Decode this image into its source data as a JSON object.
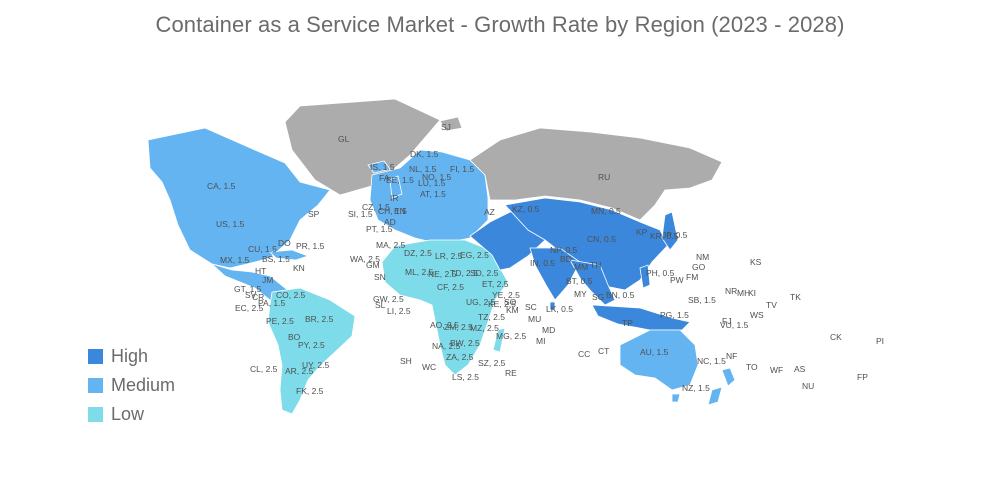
{
  "title": "Container as a Service Market - Growth Rate by Region (2023 - 2028)",
  "colors": {
    "high": "#3a87dc",
    "medium": "#64b4f2",
    "low": "#7edcea",
    "no_data": "#acacac"
  },
  "legend": [
    {
      "key": "high",
      "label": "High",
      "color": "#3a87dc"
    },
    {
      "key": "medium",
      "label": "Medium",
      "color": "#64b4f2"
    },
    {
      "key": "low",
      "label": "Low",
      "color": "#7edcea"
    }
  ],
  "regions": [
    {
      "key": "north_america",
      "category": "medium"
    },
    {
      "key": "greenland",
      "category": "no_data"
    },
    {
      "key": "central_america",
      "category": "medium"
    },
    {
      "key": "south_america",
      "category": "low"
    },
    {
      "key": "europe",
      "category": "medium"
    },
    {
      "key": "russia",
      "category": "no_data"
    },
    {
      "key": "africa",
      "category": "low"
    },
    {
      "key": "middle_east",
      "category": "high"
    },
    {
      "key": "asia",
      "category": "high"
    },
    {
      "key": "australia",
      "category": "medium"
    },
    {
      "key": "new_zealand",
      "category": "medium"
    }
  ],
  "map_labels": [
    {
      "text": "GL"
    },
    {
      "text": "SJ"
    },
    {
      "text": "RU"
    },
    {
      "text": "CA, 1.5"
    },
    {
      "text": "US, 1.5"
    },
    {
      "text": "MX, 1.5"
    },
    {
      "text": "CU, 1.5"
    },
    {
      "text": "DO"
    },
    {
      "text": "PR, 1.5"
    },
    {
      "text": "BS, 1.5"
    },
    {
      "text": "KN"
    },
    {
      "text": "HT"
    },
    {
      "text": "JM"
    },
    {
      "text": "GT, 1.5"
    },
    {
      "text": "SV"
    },
    {
      "text": "CR"
    },
    {
      "text": "PA, 1.5"
    },
    {
      "text": "EC, 2.5"
    },
    {
      "text": "CO, 2.5"
    },
    {
      "text": "PE, 2.5"
    },
    {
      "text": "BR, 2.5"
    },
    {
      "text": "BO"
    },
    {
      "text": "PY, 2.5"
    },
    {
      "text": "UY, 2.5"
    },
    {
      "text": "AR, 2.5"
    },
    {
      "text": "CL, 2.5"
    },
    {
      "text": "FK, 2.5"
    },
    {
      "text": "SP"
    },
    {
      "text": "IS, 1.5"
    },
    {
      "text": "FA"
    },
    {
      "text": "DK, 1.5"
    },
    {
      "text": "NL, 1.5"
    },
    {
      "text": "NO, 1.5"
    },
    {
      "text": "BE, 1.5"
    },
    {
      "text": "LU, 1.5"
    },
    {
      "text": "FI, 1.5"
    },
    {
      "text": "IR"
    },
    {
      "text": "CZ, 1.5"
    },
    {
      "text": "CH, 1.5"
    },
    {
      "text": "EN"
    },
    {
      "text": "SI, 1.5"
    },
    {
      "text": "AT, 1.5"
    },
    {
      "text": "AD"
    },
    {
      "text": "PT, 1.5"
    },
    {
      "text": "MA, 2.5"
    },
    {
      "text": "DZ, 2.5"
    },
    {
      "text": "LR, 2.5"
    },
    {
      "text": "EG, 2.5"
    },
    {
      "text": "WA, 2.5"
    },
    {
      "text": "SN"
    },
    {
      "text": "GM"
    },
    {
      "text": "GW, 2.5"
    },
    {
      "text": "ML, 2.5"
    },
    {
      "text": "NE, 2.5"
    },
    {
      "text": "TD, 2.5"
    },
    {
      "text": "SD, 2.5"
    },
    {
      "text": "LI, 2.5"
    },
    {
      "text": "SL"
    },
    {
      "text": "CF, 2.5"
    },
    {
      "text": "ET, 2.5"
    },
    {
      "text": "UG, 2.5"
    },
    {
      "text": "KE, 2.5"
    },
    {
      "text": "AO, 2.5"
    },
    {
      "text": "ZM, 2.5"
    },
    {
      "text": "MZ, 2.5"
    },
    {
      "text": "TZ, 2.5"
    },
    {
      "text": "NA, 2.5"
    },
    {
      "text": "BW, 2.5"
    },
    {
      "text": "ZA, 2.5"
    },
    {
      "text": "MG, 2.5"
    },
    {
      "text": "LS, 2.5"
    },
    {
      "text": "SZ, 2.5"
    },
    {
      "text": "SO"
    },
    {
      "text": "SH"
    },
    {
      "text": "WC"
    },
    {
      "text": "RE"
    },
    {
      "text": "MU"
    },
    {
      "text": "MD"
    },
    {
      "text": "MI"
    },
    {
      "text": "SC"
    },
    {
      "text": "KM"
    },
    {
      "text": "YE, 2.5"
    },
    {
      "text": "AZ"
    },
    {
      "text": "KZ, 0.5"
    },
    {
      "text": "MN, 0.5"
    },
    {
      "text": "CN, 0.5"
    },
    {
      "text": "KP"
    },
    {
      "text": "KR, 0.5"
    },
    {
      "text": "JP, 0.5"
    },
    {
      "text": "IN, 0.5"
    },
    {
      "text": "NP, 0.5"
    },
    {
      "text": "BD"
    },
    {
      "text": "MM"
    },
    {
      "text": "TH"
    },
    {
      "text": "LK, 0.5"
    },
    {
      "text": "BT, 0.5"
    },
    {
      "text": "MY"
    },
    {
      "text": "SG"
    },
    {
      "text": "BN, 0.5"
    },
    {
      "text": "PH, 0.5"
    },
    {
      "text": "TP"
    },
    {
      "text": "PG, 1.5"
    },
    {
      "text": "AU, 1.5"
    },
    {
      "text": "NZ, 1.5"
    },
    {
      "text": "NC, 1.5"
    },
    {
      "text": "NF"
    },
    {
      "text": "VU, 1.5"
    },
    {
      "text": "FJ"
    },
    {
      "text": "SB, 1.5"
    },
    {
      "text": "NR"
    },
    {
      "text": "MH"
    },
    {
      "text": "KI"
    },
    {
      "text": "TV"
    },
    {
      "text": "WS"
    },
    {
      "text": "TK"
    },
    {
      "text": "TO"
    },
    {
      "text": "WF"
    },
    {
      "text": "AS"
    },
    {
      "text": "NU"
    },
    {
      "text": "CK"
    },
    {
      "text": "PI"
    },
    {
      "text": "FP"
    },
    {
      "text": "NM"
    },
    {
      "text": "GO"
    },
    {
      "text": "FM"
    },
    {
      "text": "PW"
    },
    {
      "text": "KS"
    },
    {
      "text": "CC"
    },
    {
      "text": "CT"
    }
  ]
}
